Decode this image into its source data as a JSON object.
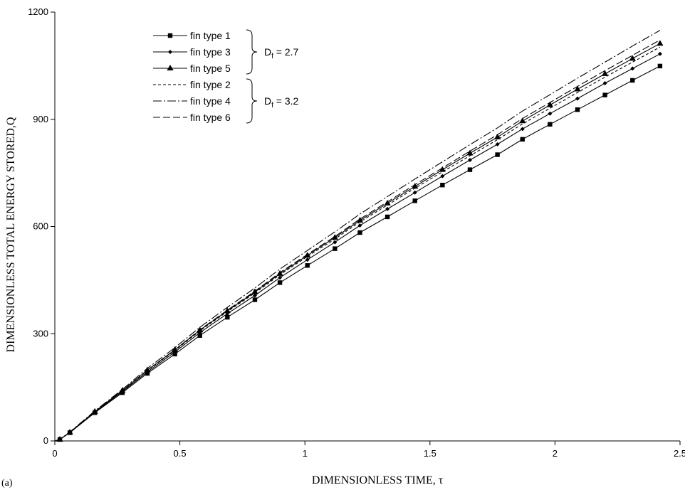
{
  "chart_data": {
    "type": "line",
    "panel_label": "(a)",
    "title": "",
    "xlabel": "DIMENSIONLESS TIME, τ",
    "ylabel": "DIMENSIONLESS TOTAL ENERGY STORED,Q",
    "xlim": [
      0,
      2.5
    ],
    "ylim": [
      0,
      1200
    ],
    "x_ticks": [
      0,
      0.5,
      1,
      1.5,
      2,
      2.5
    ],
    "x_tick_labels": [
      "0",
      "0.5",
      "1",
      "1.5",
      "2",
      "2.5"
    ],
    "y_ticks": [
      0,
      300,
      600,
      900,
      1200
    ],
    "y_tick_labels": [
      "0",
      "300",
      "600",
      "900",
      "1200"
    ],
    "grid": false,
    "legend_position": "top-left",
    "legend_groups": [
      {
        "label_main": "D",
        "label_sub": "f",
        "label_rest": " = 2.7",
        "series": [
          "fin type 1",
          "fin type 3",
          "fin type 5"
        ]
      },
      {
        "label_main": "D",
        "label_sub": "f",
        "label_rest": " = 3.2",
        "series": [
          "fin type 2",
          "fin type 4",
          "fin type 6"
        ]
      }
    ],
    "x": [
      0.02,
      0.06,
      0.16,
      0.27,
      0.37,
      0.48,
      0.58,
      0.69,
      0.8,
      0.9,
      1.01,
      1.12,
      1.22,
      1.33,
      1.44,
      1.55,
      1.66,
      1.77,
      1.87,
      1.98,
      2.09,
      2.2,
      2.31,
      2.42
    ],
    "series": [
      {
        "name": "fin type 1",
        "line": "solid",
        "marker": "square",
        "color": "#000000",
        "values": [
          4,
          23,
          79,
          135,
          189,
          243,
          295,
          346,
          395,
          443,
          491,
          538,
          583,
          627,
          672,
          716,
          759,
          801,
          844,
          886,
          927,
          968,
          1009,
          1049
        ]
      },
      {
        "name": "fin type 3",
        "line": "solid",
        "marker": "diamond",
        "color": "#000000",
        "values": [
          4,
          24,
          81,
          138,
          193,
          249,
          303,
          356,
          407,
          457,
          507,
          556,
          603,
          649,
          695,
          741,
          786,
          830,
          873,
          916,
          958,
          1001,
          1042,
          1083
        ]
      },
      {
        "name": "fin type 5",
        "line": "solid",
        "marker": "triangle",
        "color": "#000000",
        "values": [
          4,
          24,
          82,
          141,
          198,
          255,
          310,
          364,
          417,
          468,
          519,
          569,
          617,
          665,
          712,
          759,
          805,
          850,
          895,
          940,
          984,
          1027,
          1070,
          1112
        ]
      },
      {
        "name": "fin type 2",
        "line": "dash",
        "marker": "none",
        "color": "#000000",
        "values": [
          4,
          24,
          82,
          140,
          197,
          253,
          308,
          362,
          414,
          465,
          516,
          565,
          613,
          660,
          707,
          753,
          798,
          843,
          887,
          931,
          975,
          1018,
          1060,
          1102
        ]
      },
      {
        "name": "fin type 4",
        "line": "dashdot",
        "marker": "none",
        "color": "#000000",
        "values": [
          4,
          25,
          84,
          144,
          203,
          261,
          318,
          374,
          428,
          481,
          533,
          585,
          635,
          684,
          733,
          781,
          829,
          876,
          923,
          969,
          1015,
          1060,
          1105,
          1149
        ]
      },
      {
        "name": "fin type 6",
        "line": "longdash",
        "marker": "none",
        "color": "#000000",
        "values": [
          4,
          24,
          82,
          141,
          198,
          255,
          311,
          366,
          419,
          471,
          522,
          572,
          621,
          669,
          717,
          764,
          811,
          857,
          902,
          947,
          992,
          1036,
          1079,
          1122
        ]
      }
    ]
  }
}
